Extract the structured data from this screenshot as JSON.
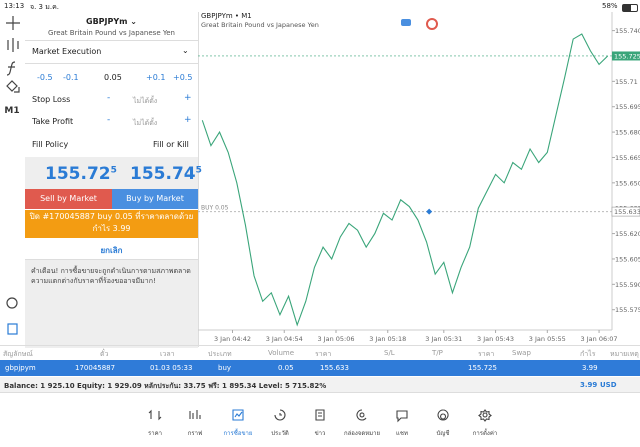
{
  "status_bar": {
    "time": "13:13",
    "date": "จ. 3 ม.ค.",
    "battery": "58%"
  },
  "sidebar": {
    "timeframe": "M1"
  },
  "order_panel": {
    "symbol": "GBPJPYm",
    "description": "Great Britain Pound vs Japanese Yen",
    "execution": "Market Execution",
    "volume_steps": [
      "-0.5",
      "-0.1",
      "+0.1",
      "+0.5"
    ],
    "volume": "0.05",
    "stop_loss": {
      "label": "Stop Loss",
      "minus": "-",
      "value": "ไม่ได้ตั้ง",
      "plus": "+"
    },
    "take_profit": {
      "label": "Take Profit",
      "minus": "-",
      "value": "ไม่ได้ตั้ง",
      "plus": "+"
    },
    "fill_policy": {
      "label": "Fill Policy",
      "value": "Fill or Kill"
    },
    "bid": {
      "main": "155.72",
      "last": "5"
    },
    "ask": {
      "main": "155.74",
      "last": "5"
    },
    "sell_button": "Sell by Market",
    "buy_button": "Buy by Market",
    "close_notice": "ปิด #170045887 buy 0.05 ที่ราคาตลาดด้วยกำไร 3.99",
    "cancel": "ยกเลิก",
    "warning": "คำเตือน! การซื้อขายจะถูกดำเนินการตามสภาพตลาด ความแตกต่างกับราคาที่ร้องขออาจมีมาก!"
  },
  "chart_data": {
    "type": "line",
    "title": "GBPJPYm • M1",
    "subtitle": "Great Britain Pound vs Japanese Yen",
    "x": [
      0,
      2,
      4,
      6,
      8,
      10,
      12,
      14,
      16,
      18,
      20,
      22,
      24,
      26,
      28,
      30,
      32,
      34,
      36,
      38,
      40,
      42,
      44,
      46,
      48,
      50,
      52,
      54,
      56,
      58,
      60,
      62,
      64,
      66,
      68,
      70,
      72,
      74,
      76,
      78,
      80,
      82,
      84,
      86,
      88,
      90,
      92,
      94
    ],
    "series": [
      {
        "color": "#3aa57a",
        "values": [
          155.687,
          155.672,
          155.68,
          155.668,
          155.65,
          155.625,
          155.595,
          155.58,
          155.585,
          155.572,
          155.583,
          155.566,
          155.58,
          155.6,
          155.612,
          155.605,
          155.618,
          155.626,
          155.622,
          155.612,
          155.62,
          155.632,
          155.628,
          155.64,
          155.636,
          155.628,
          155.615,
          155.596,
          155.603,
          155.585,
          155.6,
          155.612,
          155.635,
          155.645,
          155.655,
          155.65,
          155.662,
          155.658,
          155.67,
          155.662,
          155.668,
          155.69,
          155.712,
          155.735,
          155.738,
          155.728,
          155.72,
          155.725
        ]
      }
    ],
    "xlim": [
      -1,
      95
    ],
    "xticks": [
      {
        "value": 7,
        "label": "3 Jan 04:42"
      },
      {
        "value": 19,
        "label": "3 Jan 04:54"
      },
      {
        "value": 31,
        "label": "3 Jan 05:06"
      },
      {
        "value": 43,
        "label": "3 Jan 05:18"
      },
      {
        "value": 56,
        "label": "3 Jan 05:31"
      },
      {
        "value": 68,
        "label": "3 Jan 05:43"
      },
      {
        "value": 80,
        "label": "3 Jan 05:55"
      },
      {
        "value": 92,
        "label": "3 Jan 06:07"
      }
    ],
    "ylim": [
      155.563,
      155.751
    ],
    "yticks": [
      {
        "value": 155.74,
        "label": "155.740"
      },
      155.71,
      155.695,
      {
        "value": 155.68,
        "label": "155.680"
      },
      155.665,
      {
        "value": 155.65,
        "label": "155.650"
      },
      155.635,
      {
        "value": 155.62,
        "label": "155.620"
      },
      155.605,
      {
        "value": 155.59,
        "label": "155.590"
      },
      155.575
    ],
    "current_price": {
      "value": 155.725,
      "label": "155.725",
      "color": "#3aa57a"
    },
    "buy_level": {
      "text": "BUY 0.05",
      "value": 155.633,
      "label": "155.633",
      "entry_x": 52.6
    }
  },
  "positions": {
    "headers": [
      "สัญลักษณ์",
      "ตั๋ว",
      "เวลา",
      "ประเภท",
      "Volume",
      "ราคา",
      "S/L",
      "T/P",
      "ราคา",
      "Swap",
      "กำไร",
      "หมายเหตุ"
    ],
    "row": {
      "symbol": "gbpjpym",
      "ticket": "170045887",
      "time": "01.03 05:33",
      "type": "buy",
      "volume": "0.05",
      "price": "155.633",
      "current": "155.725",
      "profit": "3.99"
    },
    "summary": "Balance: 1 925.10 Equity: 1 929.09 หลักประกัน: 33.75 ฟรี: 1 895.34 Level: 5 715.82%",
    "total_profit": "3.99",
    "currency": "USD"
  },
  "nav": [
    "ราคา",
    "กราฟ",
    "การซื้อขาย",
    "ประวัติ",
    "ข่าว",
    "กล่องจดหมาย",
    "แชท",
    "บัญชี",
    "การตั้งค่า"
  ]
}
